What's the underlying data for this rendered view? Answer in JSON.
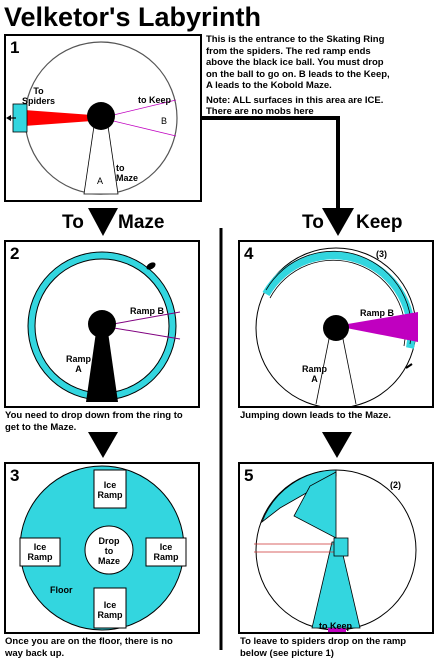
{
  "title": "Velketor's Labyrinth",
  "intro_note": [
    "This is the entrance to the Skating Ring",
    "from the spiders. The red ramp ends",
    "above the black ice ball. You must drop",
    "on the ball to go on. B leads to the Keep,",
    "A leads to the Kobold Maze.",
    "Note: ALL surfaces in this area are ICE.",
    "There are no mobs here"
  ],
  "headings": {
    "to_maze_to": "To",
    "to_maze_dest": "Maze",
    "to_keep_to": "To",
    "to_keep_dest": "Keep"
  },
  "panel1": {
    "num": "1",
    "to_spiders": "To\nSpiders",
    "to_keep": "to Keep",
    "b": "B",
    "a": "A",
    "to_maze": "to\nMaze"
  },
  "panel2": {
    "num": "2",
    "ramp_b": "Ramp B",
    "ramp_a": "Ramp\nA",
    "caption": [
      "You need to drop down from the ring to",
      "get to the Maze."
    ]
  },
  "panel3": {
    "num": "3",
    "ice_ramp": "Ice\nRamp",
    "drop": "Drop\nto\nMaze",
    "floor": "Floor",
    "caption": [
      "Once you are on the floor, there is no",
      "way back up."
    ]
  },
  "panel4": {
    "num": "4",
    "count": "(3)",
    "ramp_b": "Ramp B",
    "ramp_a": "Ramp\nA",
    "caption": [
      "Jumping down leads to the Maze."
    ]
  },
  "panel5": {
    "num": "5",
    "count": "(2)",
    "to_keep": "to Keep",
    "caption": [
      "To leave to spiders drop on the ramp",
      "below (see picture 1)"
    ]
  },
  "colors": {
    "ice": "#33d6df",
    "red_ramp": "#ff0000",
    "purple_ramp": "#c000c0",
    "ball": "#000000"
  }
}
